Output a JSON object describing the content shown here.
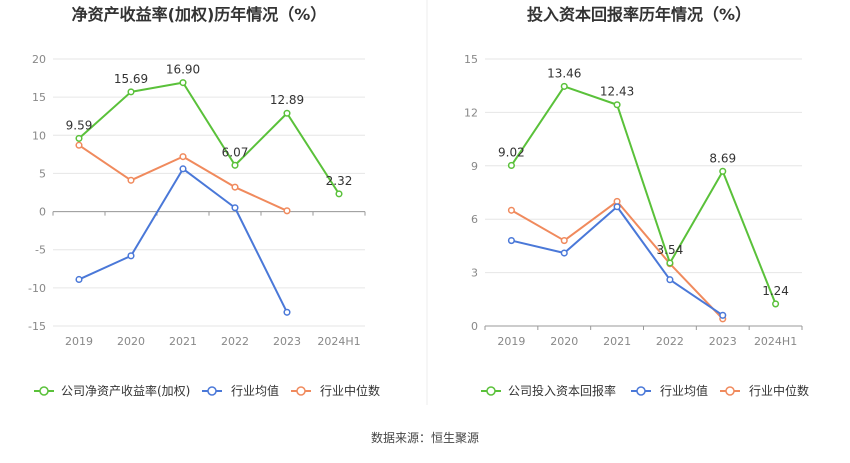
{
  "source_note": "数据来源：恒生聚源",
  "chart_data": [
    {
      "type": "line",
      "title": "净资产收益率(加权)历年情况（%）",
      "categories": [
        "2019",
        "2020",
        "2021",
        "2022",
        "2023",
        "2024H1"
      ],
      "ylim": [
        -15,
        20
      ],
      "yticks": [
        20,
        15,
        10,
        5,
        0,
        -5,
        -10,
        -15
      ],
      "grid": true,
      "legend_position": "bottom",
      "series": [
        {
          "name": "公司净资产收益率(加权)",
          "color": "#5ac13a",
          "values": [
            9.59,
            15.69,
            16.9,
            6.07,
            12.89,
            2.32
          ],
          "labels": [
            "9.59",
            "15.69",
            "16.90",
            "6.07",
            "12.89",
            "2.32"
          ]
        },
        {
          "name": "行业均值",
          "color": "#4a78d8",
          "values": [
            -8.9,
            -5.8,
            5.6,
            0.5,
            -13.2,
            null
          ]
        },
        {
          "name": "行业中位数",
          "color": "#f08a5d",
          "values": [
            8.7,
            4.1,
            7.2,
            3.2,
            0.1,
            null
          ]
        }
      ]
    },
    {
      "type": "line",
      "title": "投入资本回报率历年情况（%）",
      "categories": [
        "2019",
        "2020",
        "2021",
        "2022",
        "2023",
        "2024H1"
      ],
      "ylim": [
        0,
        15
      ],
      "yticks": [
        15,
        12,
        9,
        6,
        3,
        0
      ],
      "grid": true,
      "legend_position": "bottom",
      "series": [
        {
          "name": "公司投入资本回报率",
          "color": "#5ac13a",
          "values": [
            9.02,
            13.46,
            12.43,
            3.54,
            8.69,
            1.24
          ],
          "labels": [
            "9.02",
            "13.46",
            "12.43",
            "3.54",
            "8.69",
            "1.24"
          ]
        },
        {
          "name": "行业均值",
          "color": "#4a78d8",
          "values": [
            4.8,
            4.1,
            6.7,
            2.6,
            0.6,
            null
          ]
        },
        {
          "name": "行业中位数",
          "color": "#f08a5d",
          "values": [
            6.5,
            4.8,
            7.0,
            3.5,
            0.4,
            null
          ]
        }
      ]
    }
  ]
}
